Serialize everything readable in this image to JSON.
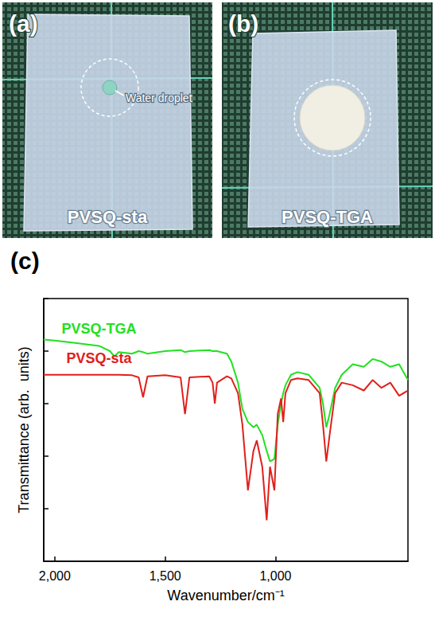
{
  "photos": [
    {
      "letter": "(a)",
      "caption": "PVSQ-sta",
      "annotation": "Water droplet"
    },
    {
      "letter": "(b)",
      "caption": "PVSQ-TGA"
    }
  ],
  "chart_data": {
    "type": "line",
    "title": "(c)",
    "x_label": "Wavenumber/cm⁻¹",
    "y_label": "Transmittance (arb.  units)",
    "xlim": [
      2050,
      400
    ],
    "xticks": [
      2000,
      1500,
      1000
    ],
    "ylim": [
      0,
      5
    ],
    "yticks": [
      0,
      1,
      2,
      3,
      4,
      5
    ],
    "tick_labels": "x",
    "grid": false,
    "x": [
      2050,
      2000,
      1900,
      1800,
      1750,
      1730,
      1710,
      1650,
      1620,
      1600,
      1580,
      1500,
      1430,
      1410,
      1390,
      1300,
      1285,
      1275,
      1265,
      1220,
      1200,
      1170,
      1150,
      1125,
      1100,
      1085,
      1060,
      1040,
      1025,
      1005,
      990,
      975,
      965,
      955,
      930,
      900,
      850,
      800,
      785,
      770,
      755,
      730,
      700,
      650,
      600,
      560,
      520,
      480,
      440,
      400
    ],
    "series": [
      {
        "name": "PVSQ-TGA",
        "color": "#22e022",
        "values": [
          4.22,
          4.2,
          4.15,
          4.1,
          4.0,
          3.9,
          3.98,
          3.95,
          4.0,
          3.98,
          3.95,
          4.0,
          4.02,
          3.98,
          4.0,
          4.02,
          4.0,
          4.0,
          4.0,
          3.95,
          3.8,
          3.4,
          2.9,
          2.65,
          2.55,
          2.6,
          2.4,
          2.1,
          1.9,
          1.95,
          2.6,
          3.0,
          3.2,
          3.35,
          3.55,
          3.6,
          3.55,
          3.3,
          3.0,
          2.55,
          2.8,
          3.3,
          3.55,
          3.75,
          3.7,
          3.85,
          3.8,
          3.7,
          3.75,
          3.45
        ]
      },
      {
        "name": "PVSQ-sta",
        "color": "#e0201c",
        "values": [
          3.55,
          3.55,
          3.55,
          3.55,
          3.55,
          3.55,
          3.55,
          3.54,
          3.5,
          3.12,
          3.52,
          3.54,
          3.5,
          2.8,
          3.5,
          3.52,
          3.4,
          3.0,
          3.4,
          3.52,
          3.48,
          3.2,
          2.6,
          1.35,
          2.1,
          2.3,
          1.8,
          0.78,
          1.8,
          1.35,
          2.8,
          3.1,
          2.65,
          3.2,
          3.45,
          3.48,
          3.45,
          3.2,
          2.6,
          1.9,
          2.4,
          3.2,
          3.4,
          3.35,
          3.25,
          3.45,
          3.3,
          3.4,
          3.15,
          3.25
        ]
      }
    ]
  }
}
